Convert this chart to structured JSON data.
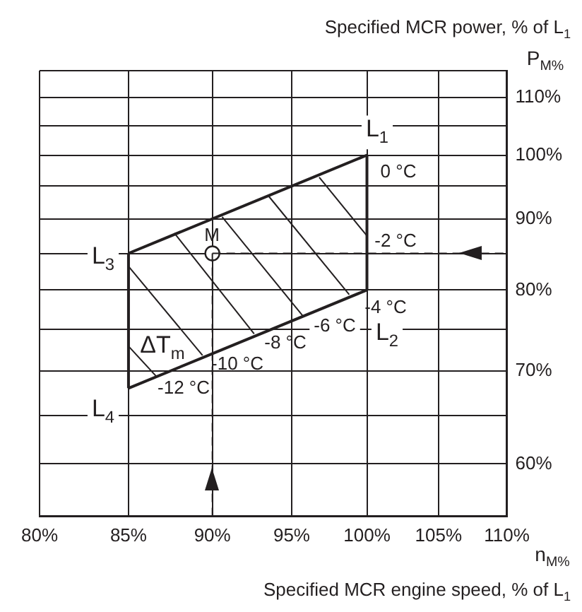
{
  "chart_data": {
    "type": "line",
    "log": "xy",
    "grid": true,
    "xlabel": "Specified MCR engine speed, % of L$_{1}$",
    "ylabel": "Specified MCR power, % of L$_{1}$",
    "xlim": [
      80,
      110
    ],
    "xticks": [
      {
        "value": 80,
        "label": "80%"
      },
      {
        "value": 85,
        "label": "85%"
      },
      {
        "value": 90,
        "label": "90%"
      },
      {
        "value": 95,
        "label": "95%"
      },
      {
        "value": 100,
        "label": "100%"
      },
      {
        "value": 105,
        "label": "105%"
      },
      {
        "value": 110,
        "label": "110%"
      }
    ],
    "ylim": [
      55,
      115
    ],
    "yticks": [
      {
        "value": 55,
        "label": null
      },
      {
        "value": 60,
        "label": "60%"
      },
      {
        "value": 65,
        "label": null
      },
      {
        "value": 70,
        "label": "70%"
      },
      {
        "value": 75,
        "label": null
      },
      {
        "value": 80,
        "label": "80%"
      },
      {
        "value": 85,
        "label": null
      },
      {
        "value": 90,
        "label": "90%"
      },
      {
        "value": 95,
        "label": null
      },
      {
        "value": 100,
        "label": "100%"
      },
      {
        "value": 105,
        "label": null
      },
      {
        "value": 110,
        "label": "110%"
      },
      {
        "value": 115,
        "label": null
      }
    ],
    "series": [
      {
        "color": "#231f20",
        "line_style": "solid",
        "marker": "none",
        "x": [
          85,
          100
        ],
        "values": [
          85,
          100
        ]
      },
      {
        "color": "#231f20",
        "line_style": "solid",
        "marker": "none",
        "x": [
          85,
          100
        ],
        "values": [
          68,
          80
        ]
      },
      {
        "color": "#231f20",
        "line_style": "solid",
        "marker": "none",
        "x": [
          85,
          85
        ],
        "values": [
          68,
          85
        ]
      },
      {
        "color": "#231f20",
        "line_style": "solid",
        "marker": "none",
        "x": [
          100,
          100
        ],
        "values": [
          80,
          100
        ]
      },
      {
        "color": "#231f20",
        "line_style": "solid",
        "marker": "none",
        "x": [
          96.8,
          100
        ],
        "values": [
          96.4,
          87.5
        ]
      },
      {
        "color": "#231f20",
        "line_style": "solid",
        "marker": "none",
        "x": [
          93.5,
          98.8
        ],
        "values": [
          93.5,
          79.4
        ]
      },
      {
        "color": "#231f20",
        "line_style": "solid",
        "marker": "none",
        "x": [
          90.6,
          95.7
        ],
        "values": [
          90.3,
          76.7
        ]
      },
      {
        "color": "#231f20",
        "line_style": "solid",
        "marker": "none",
        "x": [
          87.7,
          92.6
        ],
        "values": [
          87.9,
          74.4
        ]
      },
      {
        "color": "#231f20",
        "line_style": "solid",
        "marker": "none",
        "x": [
          85,
          89.4
        ],
        "values": [
          83.2,
          71.8
        ]
      },
      {
        "color": "#231f20",
        "line_style": "solid",
        "marker": "none",
        "x": [
          85,
          86.6
        ],
        "values": [
          72.9,
          69.4
        ]
      },
      {
        "color": "#231f20",
        "line_style": "dashed",
        "marker": "none",
        "x": [
          90,
          110
        ],
        "values": [
          85,
          85
        ]
      },
      {
        "color": "#231f20",
        "line_style": "dashed",
        "marker": "none",
        "x": [
          90,
          90
        ],
        "values": [
          85,
          55
        ]
      },
      {
        "type": "scatter",
        "color": "#231f20",
        "marker": "circle",
        "x": [
          90
        ],
        "values": [
          85
        ]
      }
    ],
    "annotations": [
      "n$_{M%}$",
      "P$_{M%}$",
      "0 °C",
      "-2 °C",
      "-4 °C",
      "-6 °C",
      "-8 °C",
      "-10 °C",
      "-12 °C",
      "ΔT$_{m}$",
      "M",
      "L$_{1}$",
      "L$_{2}$",
      "L$_{3}$",
      "L$_{4}$"
    ]
  }
}
